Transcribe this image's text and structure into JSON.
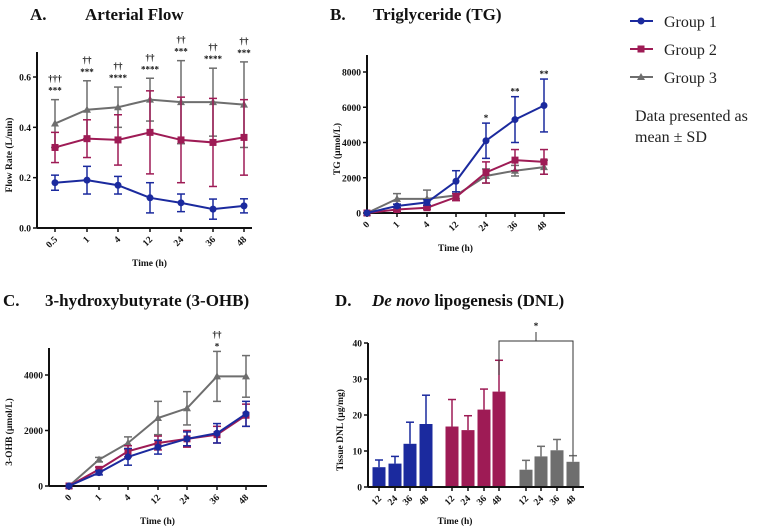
{
  "legend": {
    "items": [
      "Group 1",
      "Group 2",
      "Group 3"
    ],
    "note_line1": "Data presented as",
    "note_line2": "mean ± SD"
  },
  "colors": {
    "group1": "#1b2a9e",
    "group2": "#9e1b55",
    "group3": "#6e6e6e"
  },
  "chart_data": [
    {
      "id": "A",
      "type": "line",
      "panel_label": "A.",
      "title": "Arterial Flow",
      "xlabel": "Time (h)",
      "ylabel": "Flow Rate (L/min)",
      "x": [
        "0.5",
        "1",
        "4",
        "12",
        "24",
        "36",
        "48"
      ],
      "ylim": [
        0,
        0.7
      ],
      "yticks": [
        "0.0",
        "0.2",
        "0.4",
        "0.6"
      ],
      "ytick_values": [
        0,
        0.2,
        0.4,
        0.6
      ],
      "series": [
        {
          "name": "Group 1",
          "values": [
            0.18,
            0.19,
            0.17,
            0.12,
            0.1,
            0.075,
            0.088
          ],
          "sd": [
            0.03,
            0.055,
            0.035,
            0.06,
            0.035,
            0.04,
            0.028
          ]
        },
        {
          "name": "Group 2",
          "values": [
            0.32,
            0.355,
            0.35,
            0.38,
            0.35,
            0.34,
            0.36
          ],
          "sd": [
            0.06,
            0.075,
            0.1,
            0.165,
            0.17,
            0.175,
            0.15
          ]
        },
        {
          "name": "Group 3",
          "values": [
            0.415,
            0.47,
            0.48,
            0.51,
            0.5,
            0.5,
            0.49
          ],
          "sd": [
            0.095,
            0.115,
            0.08,
            0.085,
            0.165,
            0.135,
            0.17
          ]
        }
      ],
      "annotations_stars": [
        "***",
        "***",
        "****",
        "****",
        "***",
        "****",
        "***"
      ],
      "annotations_daggers": [
        "†††",
        "††",
        "††",
        "††",
        "††",
        "††",
        "††"
      ]
    },
    {
      "id": "B",
      "type": "line",
      "panel_label": "B.",
      "title": "Triglyceride (TG)",
      "xlabel": "Time (h)",
      "ylabel": "TG (µmol/L)",
      "x": [
        "0",
        "1",
        "4",
        "12",
        "24",
        "36",
        "48"
      ],
      "ylim": [
        0,
        8800
      ],
      "yticks": [
        "0",
        "2000",
        "4000",
        "6000",
        "8000"
      ],
      "ytick_values": [
        0,
        2000,
        4000,
        6000,
        8000
      ],
      "series": [
        {
          "name": "Group 1",
          "values": [
            0,
            400,
            600,
            1800,
            4100,
            5300,
            6100
          ],
          "sd": [
            0,
            100,
            150,
            600,
            1000,
            1300,
            1500
          ]
        },
        {
          "name": "Group 2",
          "values": [
            0,
            200,
            300,
            900,
            2300,
            3000,
            2900
          ],
          "sd": [
            0,
            100,
            100,
            200,
            600,
            600,
            700
          ]
        },
        {
          "name": "Group 3",
          "values": [
            0,
            800,
            800,
            1000,
            2100,
            2400,
            2600
          ],
          "sd": [
            0,
            300,
            500,
            200,
            400,
            300,
            400
          ]
        }
      ],
      "annotations_stars": [
        "",
        "",
        "",
        "",
        "*",
        "**",
        "**"
      ],
      "annotations_daggers": [
        "",
        "",
        "",
        "",
        "",
        "",
        ""
      ]
    },
    {
      "id": "C",
      "type": "line",
      "panel_label": "C.",
      "title": "3-hydroxybutyrate (3-OHB)",
      "xlabel": "Time (h)",
      "ylabel": "3-OHB (µmol/L)",
      "x": [
        "0",
        "1",
        "4",
        "12",
        "24",
        "36",
        "48"
      ],
      "ylim": [
        0,
        5000
      ],
      "yticks": [
        "0",
        "2000",
        "4000"
      ],
      "ytick_values": [
        0,
        2000,
        4000
      ],
      "series": [
        {
          "name": "Group 1",
          "values": [
            0,
            480,
            1050,
            1400,
            1700,
            1900,
            2600
          ],
          "sd": [
            0,
            80,
            300,
            250,
            250,
            350,
            450
          ]
        },
        {
          "name": "Group 2",
          "values": [
            0,
            600,
            1250,
            1550,
            1700,
            1850,
            2550
          ],
          "sd": [
            0,
            80,
            200,
            250,
            300,
            300,
            400
          ]
        },
        {
          "name": "Group 3",
          "values": [
            0,
            950,
            1550,
            2450,
            2800,
            3950,
            3950
          ],
          "sd": [
            0,
            80,
            220,
            600,
            600,
            900,
            750
          ]
        }
      ],
      "annotations_stars": [
        "",
        "",
        "",
        "",
        "",
        "*",
        ""
      ],
      "annotations_daggers": [
        "",
        "",
        "",
        "",
        "",
        "††",
        ""
      ]
    },
    {
      "id": "D",
      "type": "bar",
      "panel_label": "D.",
      "title_italic": "De novo",
      "title": " lipogenesis (DNL)",
      "xlabel": "Time (h)",
      "ylabel": "Tissue DNL (µg/mg)",
      "categories": [
        "12",
        "24",
        "36",
        "48"
      ],
      "ylim": [
        0,
        40
      ],
      "yticks": [
        "0",
        "10",
        "20",
        "30",
        "40"
      ],
      "ytick_values": [
        0,
        10,
        20,
        30,
        40
      ],
      "series": [
        {
          "name": "Group 1",
          "values": [
            5.5,
            6.5,
            12,
            17.5
          ],
          "sd": [
            2,
            2,
            6,
            8
          ]
        },
        {
          "name": "Group 2",
          "values": [
            16.8,
            15.8,
            21.5,
            26.5
          ],
          "sd": [
            7.5,
            4,
            5.7,
            8.7
          ]
        },
        {
          "name": "Group 3",
          "values": [
            4.8,
            8.5,
            10.2,
            7
          ],
          "sd": [
            2.6,
            2.8,
            3,
            1.7
          ]
        }
      ],
      "bracket_label": "*"
    }
  ]
}
